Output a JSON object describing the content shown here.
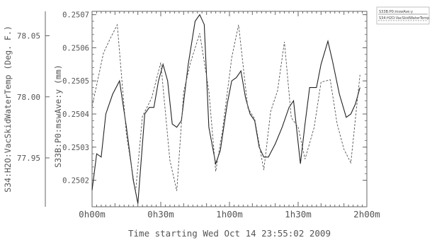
{
  "chart_data": {
    "type": "line",
    "title": "",
    "xlabel": "Time starting Wed Oct 14 23:55:02 2009",
    "x_tick_labels": [
      "0h00m",
      "0h30m",
      "1h00m",
      "1h30m",
      "2h00m"
    ],
    "x_ticks_min": [
      0,
      30,
      60,
      90,
      120
    ],
    "xlim_min": [
      0,
      120
    ],
    "y_left": {
      "label": "S34:H2O:VacSkidWaterTemp (Deg. F.)",
      "ticks": [
        77.95,
        78.0,
        78.05
      ],
      "tick_labels": [
        "77.95",
        "78.00",
        "78.05"
      ],
      "lim": [
        77.91,
        78.07
      ]
    },
    "y_right": {
      "label": "S33B:P0:mswAve:y (mm)",
      "ticks": [
        0.2502,
        0.2503,
        0.2504,
        0.2505,
        0.2506,
        0.2507
      ],
      "tick_labels": [
        "0.2502",
        "0.2503",
        "0.2504",
        "0.2505",
        "0.2506",
        "0.2507"
      ],
      "lim": [
        0.25012,
        0.25071
      ]
    },
    "series": [
      {
        "name": "S33B:P0:mswAve:y",
        "axis": "right",
        "style": "solid",
        "x": [
          0,
          2,
          4,
          6,
          9,
          12,
          15,
          18,
          20,
          23,
          25,
          27,
          29,
          31,
          33,
          35,
          37,
          39,
          42,
          45,
          47,
          49,
          51,
          54,
          56,
          59,
          61,
          63,
          65,
          67,
          69,
          71,
          73,
          75,
          77,
          80,
          83,
          86,
          88,
          91,
          93,
          95,
          98,
          100,
          103,
          105,
          108,
          111,
          113,
          115,
          117
        ],
        "y": [
          0.25017,
          0.25028,
          0.25027,
          0.2504,
          0.25046,
          0.2505,
          0.25036,
          0.2502,
          0.25013,
          0.2504,
          0.25042,
          0.25042,
          0.2505,
          0.25055,
          0.2505,
          0.25037,
          0.25036,
          0.25038,
          0.25055,
          0.25068,
          0.2507,
          0.25067,
          0.25036,
          0.25025,
          0.25029,
          0.25043,
          0.2505,
          0.25051,
          0.25053,
          0.25045,
          0.2504,
          0.25038,
          0.2503,
          0.25027,
          0.25027,
          0.25031,
          0.25036,
          0.25042,
          0.25044,
          0.25025,
          0.25037,
          0.25048,
          0.25048,
          0.25055,
          0.25062,
          0.25056,
          0.25046,
          0.25039,
          0.2504,
          0.25043,
          0.25048
        ]
      },
      {
        "name": "S34:H2O:VacSkidWaterTemp",
        "axis": "left",
        "style": "dashed",
        "x": [
          0,
          5,
          8,
          11,
          15,
          19,
          22,
          26,
          30,
          34,
          37,
          40,
          43,
          47,
          51,
          54,
          57,
          61,
          64,
          68,
          71,
          75,
          78,
          81,
          84,
          87,
          90,
          93,
          97,
          100,
          104,
          107,
          110,
          113,
          117
        ],
        "y": [
          77.992,
          78.036,
          78.048,
          78.059,
          77.969,
          77.922,
          77.984,
          77.999,
          78.028,
          77.948,
          77.923,
          78.004,
          78.028,
          78.052,
          78.005,
          77.939,
          77.973,
          78.032,
          78.059,
          77.991,
          77.982,
          77.94,
          77.988,
          78.005,
          78.045,
          77.983,
          77.975,
          77.949,
          77.975,
          78.012,
          78.014,
          77.978,
          77.957,
          77.946,
          78.018
        ]
      }
    ],
    "legend": {
      "placement": "top-right",
      "entries": [
        "S33B:P0:mswAve:y",
        "S34:H2O:VacSkidWaterTemp"
      ]
    },
    "grid": false,
    "colors": {
      "axis": "#666666",
      "series_solid": "#222222",
      "series_dashed": "#555555"
    }
  }
}
